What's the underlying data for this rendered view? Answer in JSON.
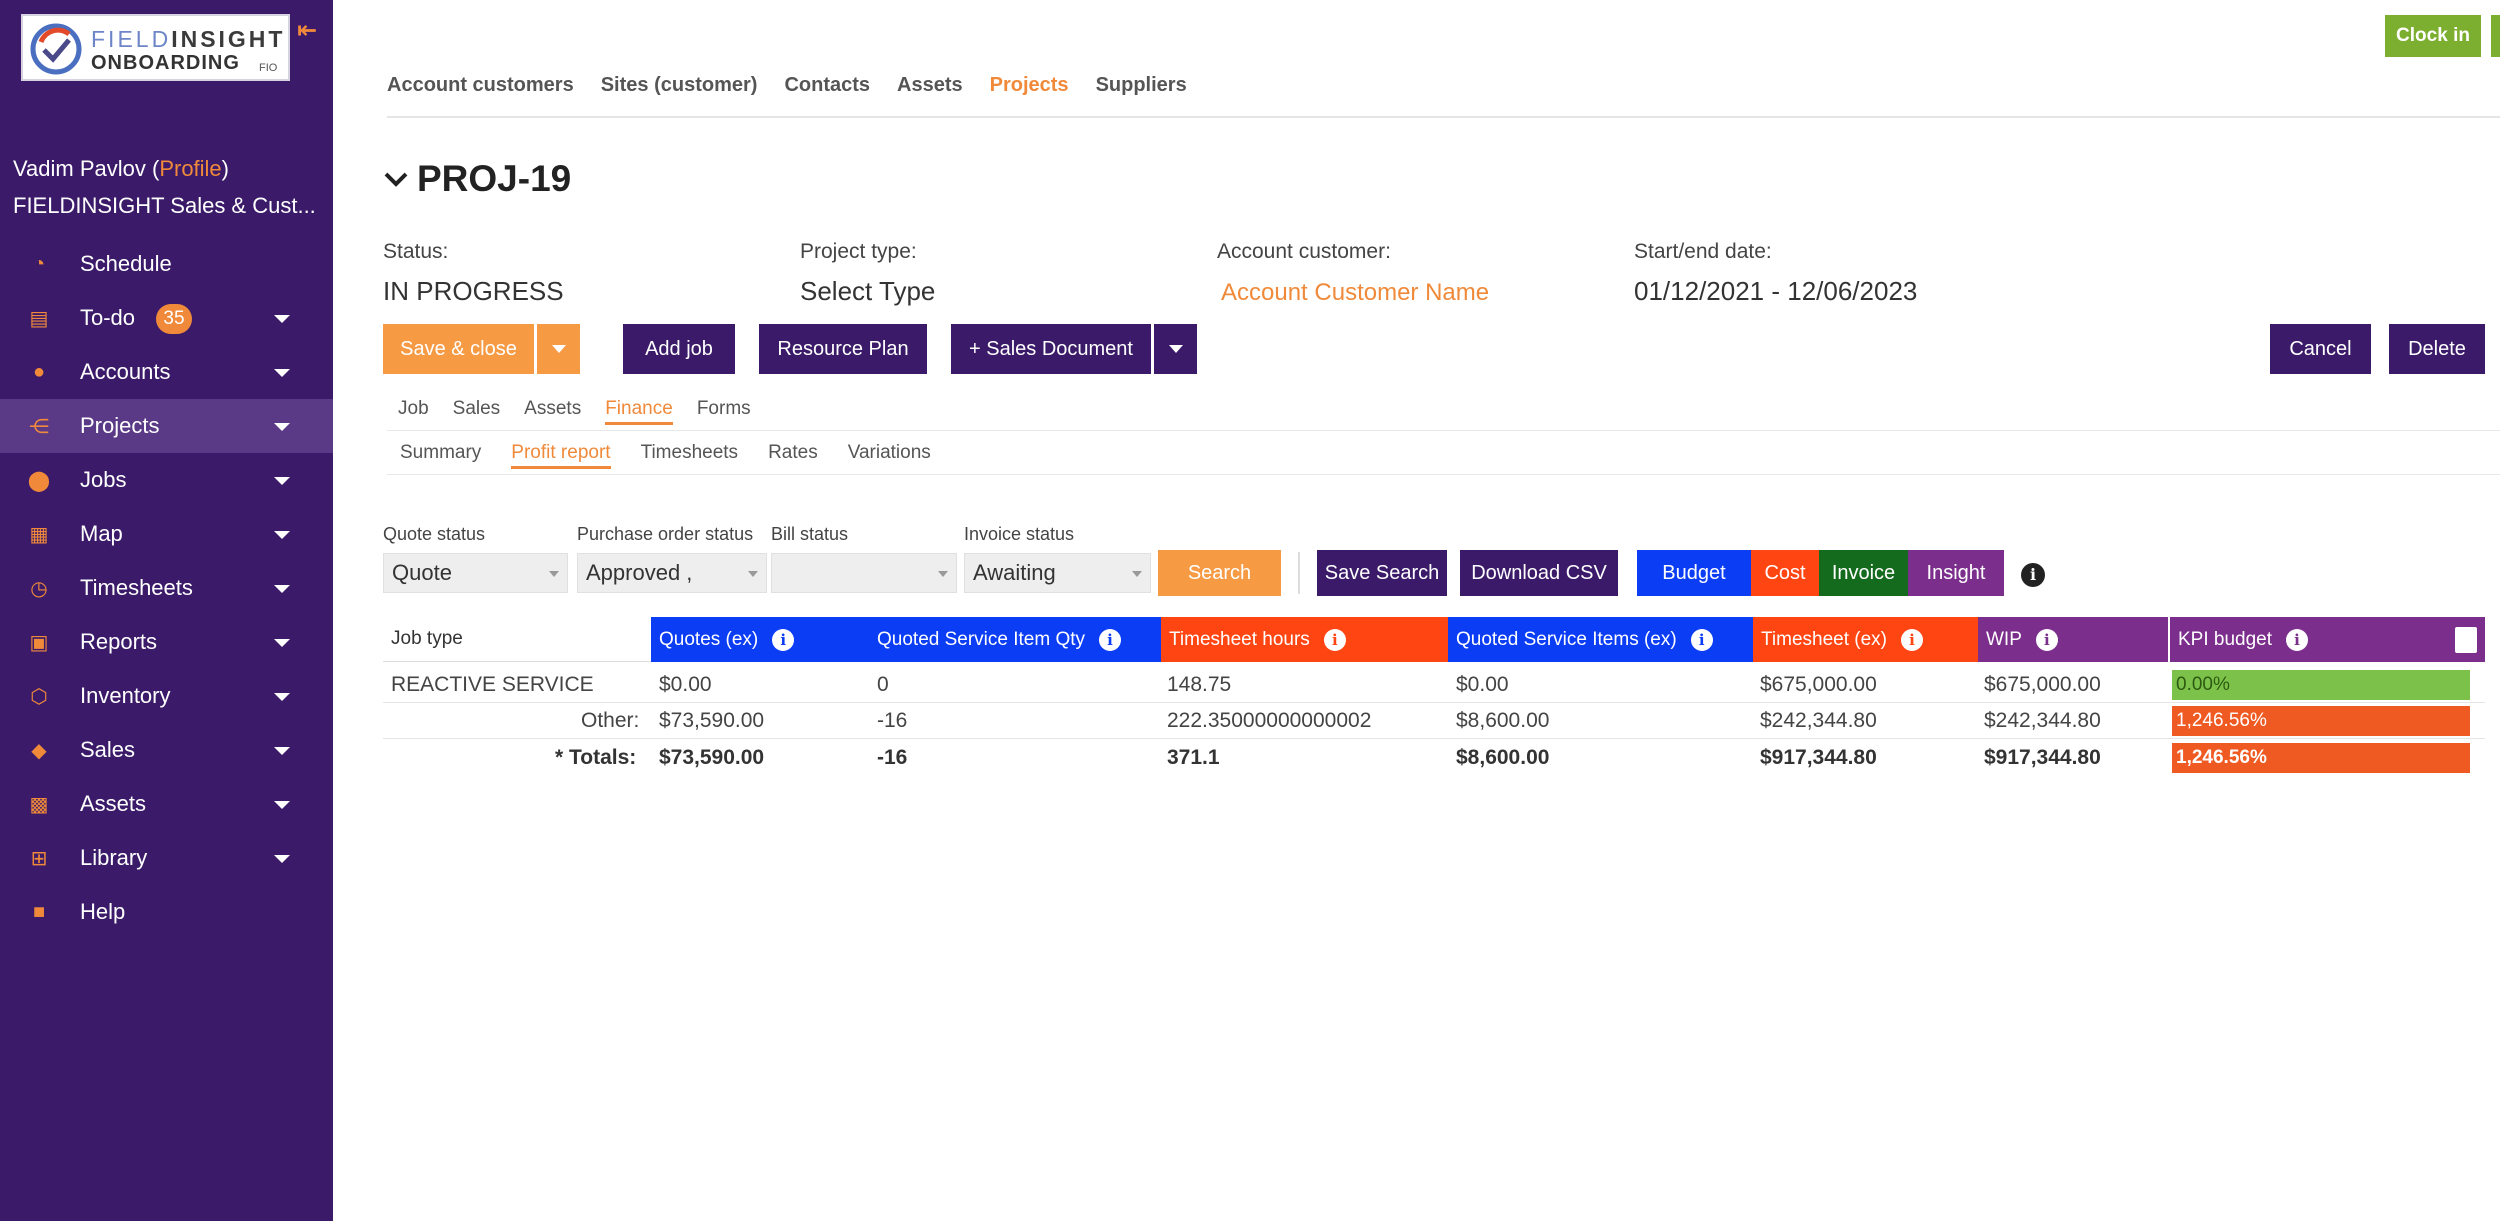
{
  "brand": {
    "logo_line1_a": "FIELD",
    "logo_line1_b": "INSIGHT",
    "logo_line2": "ONBOARDING",
    "logo_sub": "FIO",
    "collapse_icon": "collapse-arrow-icon"
  },
  "user": {
    "name": "Vadim Pavlov (",
    "profile_link": "Profile",
    "close_paren": ")",
    "org": "FIELDINSIGHT Sales & Cust..."
  },
  "nav": {
    "items": [
      {
        "label": "Schedule",
        "icon": "schedule-icon"
      },
      {
        "label": "To-do",
        "icon": "todo-icon",
        "badge": "35"
      },
      {
        "label": "Accounts",
        "icon": "accounts-icon"
      },
      {
        "label": "Projects",
        "icon": "projects-icon",
        "active": true
      },
      {
        "label": "Jobs",
        "icon": "jobs-icon"
      },
      {
        "label": "Map",
        "icon": "map-icon"
      },
      {
        "label": "Timesheets",
        "icon": "timesheets-icon"
      },
      {
        "label": "Reports",
        "icon": "reports-icon"
      },
      {
        "label": "Inventory",
        "icon": "inventory-icon"
      },
      {
        "label": "Sales",
        "icon": "sales-icon"
      },
      {
        "label": "Assets",
        "icon": "assets-icon"
      },
      {
        "label": "Library",
        "icon": "library-icon"
      },
      {
        "label": "Help",
        "icon": "help-icon"
      }
    ]
  },
  "header": {
    "clock_in": "Clock in",
    "tabs": [
      "Account customers",
      "Sites (customer)",
      "Contacts",
      "Assets",
      "Projects",
      "Suppliers"
    ],
    "active_tab": "Projects"
  },
  "project": {
    "title": "PROJ-19",
    "status_label": "Status:",
    "status_value": "IN PROGRESS",
    "type_label": "Project type:",
    "type_value": "Select Type",
    "customer_label": "Account customer:",
    "customer_value": "Account Customer Name",
    "dates_label": "Start/end date:",
    "dates_value": "01/12/2021 - 12/06/2023"
  },
  "actions": {
    "save_close": "Save & close",
    "add_job": "Add job",
    "resource_plan": "Resource Plan",
    "sales_document": "+ Sales Document",
    "cancel": "Cancel",
    "delete": "Delete"
  },
  "section_tabs": [
    "Job",
    "Sales",
    "Assets",
    "Finance",
    "Forms"
  ],
  "active_section_tab": "Finance",
  "finance_tabs": [
    "Summary",
    "Profit report",
    "Timesheets",
    "Rates",
    "Variations"
  ],
  "active_finance_tab": "Profit report",
  "filters": {
    "quote_status_label": "Quote status",
    "quote_status_value": "Quote",
    "po_status_label": "Purchase order status",
    "po_status_value": "Approved ,",
    "bill_status_label": "Bill status",
    "bill_status_value": "",
    "invoice_status_label": "Invoice status",
    "invoice_status_value": "Awaiting",
    "search": "Search",
    "save_search": "Save Search",
    "download_csv": "Download CSV",
    "budget": "Budget",
    "cost": "Cost",
    "invoice": "Invoice",
    "insight": "Insight",
    "info": "i"
  },
  "table": {
    "headers": {
      "job_type": "Job type",
      "quotes_ex": "Quotes (ex)",
      "quoted_service_qty": "Quoted Service Item Qty",
      "timesheet_hours": "Timesheet hours",
      "quoted_service_items_ex": "Quoted Service Items (ex)",
      "timesheet_ex": "Timesheet (ex)",
      "wip": "WIP",
      "kpi_budget": "KPI budget"
    },
    "rows": [
      {
        "job_type": "REACTIVE SERVICE",
        "quotes_ex": "$0.00",
        "qty": "0",
        "hours": "148.75",
        "qsi_ex": "$0.00",
        "ts_ex": "$675,000.00",
        "wip": "$675,000.00",
        "kpi": "0.00%"
      },
      {
        "job_type": "Other:",
        "quotes_ex": "$73,590.00",
        "qty": "-16",
        "hours": "222.35000000000002",
        "qsi_ex": "$8,600.00",
        "ts_ex": "$242,344.80",
        "wip": "$242,344.80",
        "kpi": "1,246.56%"
      },
      {
        "job_type": "* Totals:",
        "quotes_ex": "$73,590.00",
        "qty": "-16",
        "hours": "371.1",
        "qsi_ex": "$8,600.00",
        "ts_ex": "$917,344.80",
        "wip": "$917,344.80",
        "kpi": "1,246.56%"
      }
    ]
  },
  "colors": {
    "sidebar": "#3b1b69",
    "accent": "#f08a3a",
    "blue": "#0b3df5",
    "red": "#ff4511",
    "purple": "#7b2e8c",
    "green": "#7cae2f"
  }
}
